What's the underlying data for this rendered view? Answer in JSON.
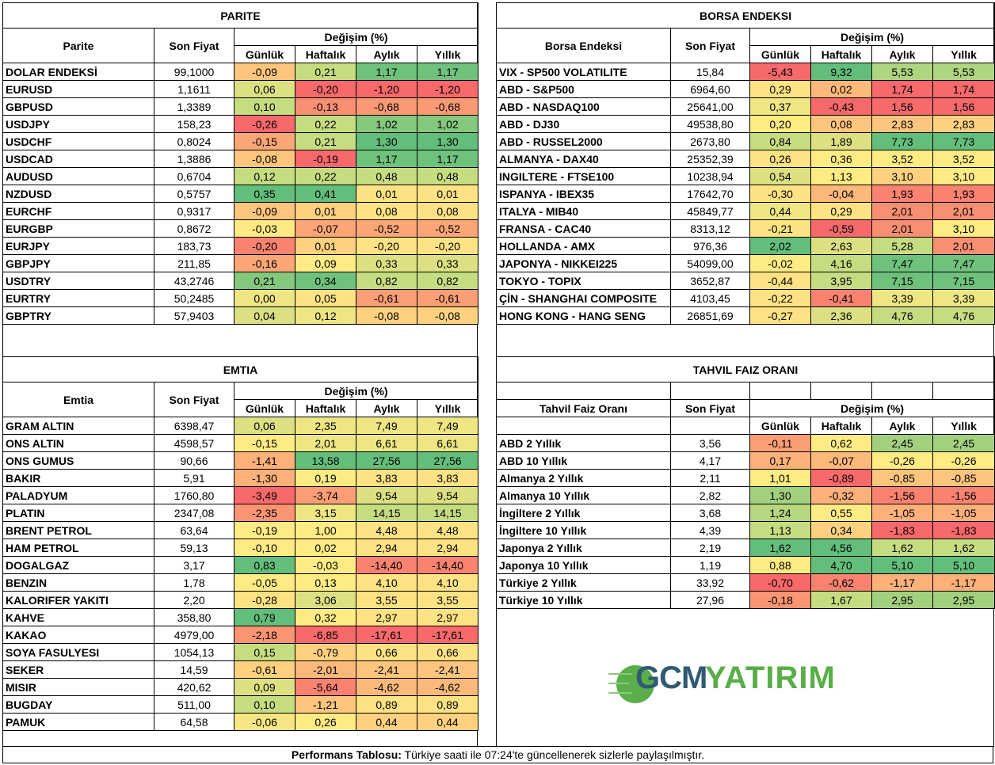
{
  "colors": {
    "deep_red": "#f8696b",
    "red": "#f98370",
    "orange_red": "#fa9e75",
    "orange": "#fcb97a",
    "light_orange": "#fdd17f",
    "yellow": "#ffeb84",
    "yellow_green": "#e5e483",
    "light_green": "#c6dc81",
    "green": "#a2d07f",
    "mid_green": "#84c77d",
    "dark_green": "#63be7b"
  },
  "parite": {
    "title": "PARITE",
    "col_name": "Parite",
    "col_price": "Son Fiyat",
    "col_change": "Değişim (%)",
    "cols": [
      "Günlük",
      "Haftalık",
      "Aylık",
      "Yıllık"
    ],
    "rows": [
      {
        "name": "DOLAR ENDEKSİ",
        "price": "99,1000",
        "v": [
          "-0,09",
          "0,21",
          "1,17",
          "1,17"
        ],
        "c": [
          "#fdc57d",
          "#c6dc81",
          "#6fc27c",
          "#6fc27c"
        ]
      },
      {
        "name": "EURUSD",
        "price": "1,1611",
        "v": [
          "0,06",
          "-0,20",
          "-1,20",
          "-1,20"
        ],
        "c": [
          "#dde082",
          "#f8696b",
          "#f8696b",
          "#f8696b"
        ]
      },
      {
        "name": "GBPUSD",
        "price": "1,3389",
        "v": [
          "0,10",
          "-0,13",
          "-0,68",
          "-0,68"
        ],
        "c": [
          "#c6dc81",
          "#fa9073",
          "#fa9a75",
          "#fa9a75"
        ]
      },
      {
        "name": "USDJPY",
        "price": "158,23",
        "v": [
          "-0,26",
          "0,22",
          "1,02",
          "1,02"
        ],
        "c": [
          "#f8696b",
          "#c6dc81",
          "#84c77d",
          "#84c77d"
        ]
      },
      {
        "name": "USDCHF",
        "price": "0,8024",
        "v": [
          "-0,15",
          "0,21",
          "1,30",
          "1,30"
        ],
        "c": [
          "#fba677",
          "#c6dc81",
          "#63be7b",
          "#63be7b"
        ]
      },
      {
        "name": "USDCAD",
        "price": "1,3886",
        "v": [
          "-0,08",
          "-0,19",
          "1,17",
          "1,17"
        ],
        "c": [
          "#fdc57d",
          "#f8696b",
          "#6fc27c",
          "#6fc27c"
        ]
      },
      {
        "name": "AUDUSD",
        "price": "0,6704",
        "v": [
          "0,12",
          "0,22",
          "0,48",
          "0,48"
        ],
        "c": [
          "#c6dc81",
          "#c6dc81",
          "#c6dc81",
          "#c6dc81"
        ]
      },
      {
        "name": "NZDUSD",
        "price": "0,5757",
        "v": [
          "0,35",
          "0,41",
          "0,01",
          "0,01"
        ],
        "c": [
          "#63be7b",
          "#63be7b",
          "#fee283",
          "#fee283"
        ]
      },
      {
        "name": "EURCHF",
        "price": "0,9317",
        "v": [
          "-0,09",
          "0,01",
          "0,08",
          "0,08"
        ],
        "c": [
          "#fdc57d",
          "#fdd17f",
          "#fee283",
          "#fee283"
        ]
      },
      {
        "name": "EURGBP",
        "price": "0,8672",
        "v": [
          "-0,03",
          "-0,07",
          "-0,52",
          "-0,52"
        ],
        "c": [
          "#ffe984",
          "#fba677",
          "#fba677",
          "#fba677"
        ]
      },
      {
        "name": "EURJPY",
        "price": "183,73",
        "v": [
          "-0,20",
          "0,01",
          "-0,20",
          "-0,20"
        ],
        "c": [
          "#f98370",
          "#fdd17f",
          "#fee283",
          "#fee283"
        ]
      },
      {
        "name": "GBPJPY",
        "price": "211,85",
        "v": [
          "-0,16",
          "0,09",
          "0,33",
          "0,33"
        ],
        "c": [
          "#fba677",
          "#ffeb84",
          "#dde082",
          "#dde082"
        ]
      },
      {
        "name": "USDTRY",
        "price": "43,2746",
        "v": [
          "0,21",
          "0,34",
          "0,82",
          "0,82"
        ],
        "c": [
          "#84c77d",
          "#6fc27c",
          "#c6dc81",
          "#c6dc81"
        ]
      },
      {
        "name": "EURTRY",
        "price": "50,2485",
        "v": [
          "0,00",
          "0,05",
          "-0,61",
          "-0,61"
        ],
        "c": [
          "#ede683",
          "#fee283",
          "#fa9e75",
          "#fa9e75"
        ]
      },
      {
        "name": "GBPTRY",
        "price": "57,9403",
        "v": [
          "0,04",
          "0,12",
          "-0,08",
          "-0,08"
        ],
        "c": [
          "#dde082",
          "#ede683",
          "#fdd17f",
          "#fdd17f"
        ]
      }
    ]
  },
  "borsa": {
    "title": "BORSA ENDEKSI",
    "col_name": "Borsa Endeksi",
    "col_price": "Son Fiyat",
    "col_change": "Değişim (%)",
    "cols": [
      "Günlük",
      "Haftalık",
      "Aylık",
      "Yıllık"
    ],
    "rows": [
      {
        "name": "VIX  - SP500 VOLATILITE",
        "price": "15,84",
        "v": [
          "-5,43",
          "9,32",
          "5,53",
          "5,53"
        ],
        "c": [
          "#f8696b",
          "#63be7b",
          "#aed580",
          "#aed580"
        ]
      },
      {
        "name": "ABD - S&P500",
        "price": "6964,60",
        "v": [
          "0,29",
          "0,02",
          "1,74",
          "1,74"
        ],
        "c": [
          "#fee283",
          "#fcb97a",
          "#f8696b",
          "#f8696b"
        ]
      },
      {
        "name": "ABD - NASDAQ100",
        "price": "25641,00",
        "v": [
          "0,37",
          "-0,43",
          "1,56",
          "1,56"
        ],
        "c": [
          "#ede683",
          "#f8696b",
          "#f8696b",
          "#f8696b"
        ]
      },
      {
        "name": "ABD - DJ30",
        "price": "49538,80",
        "v": [
          "0,20",
          "0,08",
          "2,83",
          "2,83"
        ],
        "c": [
          "#ffeb84",
          "#fdc57d",
          "#fdc57d",
          "#fdd17f"
        ]
      },
      {
        "name": "ABD - RUSSEL2000",
        "price": "2673,80",
        "v": [
          "0,84",
          "1,89",
          "7,73",
          "7,73"
        ],
        "c": [
          "#c6dc81",
          "#dde082",
          "#63be7b",
          "#63be7b"
        ]
      },
      {
        "name": "ALMANYA - DAX40",
        "price": "25352,39",
        "v": [
          "0,26",
          "0,36",
          "3,52",
          "3,52"
        ],
        "c": [
          "#fee283",
          "#ffeb84",
          "#ffeb84",
          "#ffeb84"
        ]
      },
      {
        "name": "INGILTERE - FTSE100",
        "price": "10238,94",
        "v": [
          "0,54",
          "1,13",
          "3,10",
          "3,10"
        ],
        "c": [
          "#dde082",
          "#ffeb84",
          "#fdd17f",
          "#ffeb84"
        ]
      },
      {
        "name": "ISPANYA - IBEX35",
        "price": "17642,70",
        "v": [
          "-0,30",
          "-0,04",
          "1,93",
          "1,93"
        ],
        "c": [
          "#fee283",
          "#fcb97a",
          "#f98370",
          "#f98370"
        ]
      },
      {
        "name": "ITALYA - MIB40",
        "price": "45849,77",
        "v": [
          "0,44",
          "0,29",
          "2,01",
          "2,01"
        ],
        "c": [
          "#ede683",
          "#fee283",
          "#f98f72",
          "#f98f72"
        ]
      },
      {
        "name": "FRANSA - CAC40",
        "price": "8313,12",
        "v": [
          "-0,21",
          "-0,59",
          "2,01",
          "3,10"
        ],
        "c": [
          "#fee283",
          "#f8696b",
          "#f98f72",
          "#ffeb84"
        ]
      },
      {
        "name": "HOLLANDA - AMX",
        "price": "976,36",
        "v": [
          "2,02",
          "2,63",
          "5,28",
          "2,01"
        ],
        "c": [
          "#63be7b",
          "#dde082",
          "#c6dc81",
          "#f98f72"
        ]
      },
      {
        "name": "JAPONYA - NIKKEI225",
        "price": "54099,00",
        "v": [
          "-0,02",
          "4,16",
          "7,47",
          "7,47"
        ],
        "c": [
          "#ffeb84",
          "#c6dc81",
          "#6fc27c",
          "#6fc27c"
        ]
      },
      {
        "name": "TOKYO - TOPIX",
        "price": "3652,87",
        "v": [
          "-0,44",
          "3,95",
          "7,15",
          "7,15"
        ],
        "c": [
          "#fee283",
          "#c6dc81",
          "#6fc27c",
          "#6fc27c"
        ]
      },
      {
        "name": "ÇİN - SHANGHAI COMPOSITE",
        "price": "4103,45",
        "v": [
          "-0,22",
          "-0,41",
          "3,39",
          "3,39"
        ],
        "c": [
          "#fee283",
          "#f98370",
          "#ede683",
          "#ede683"
        ]
      },
      {
        "name": "HONG KONG - HANG SENG",
        "price": "26851,69",
        "v": [
          "-0,27",
          "2,36",
          "4,76",
          "4,76"
        ],
        "c": [
          "#fee283",
          "#dde082",
          "#c6dc81",
          "#c6dc81"
        ]
      }
    ]
  },
  "emtia": {
    "title": "EMTIA",
    "col_name": "Emtia",
    "col_price": "Son Fiyat",
    "col_change": "Değişim (%)",
    "cols": [
      "Günlük",
      "Haftalık",
      "Aylık",
      "Yıllık"
    ],
    "rows": [
      {
        "name": "GRAM ALTIN",
        "price": "6398,47",
        "v": [
          "0,06",
          "2,35",
          "7,49",
          "7,49"
        ],
        "c": [
          "#dde082",
          "#ede683",
          "#ede683",
          "#ede683"
        ]
      },
      {
        "name": "ONS ALTIN",
        "price": "4598,57",
        "v": [
          "-0,15",
          "2,01",
          "6,61",
          "6,61"
        ],
        "c": [
          "#ffeb84",
          "#ede683",
          "#ede683",
          "#ede683"
        ]
      },
      {
        "name": "ONS GUMUS",
        "price": "90,66",
        "v": [
          "-1,41",
          "13,58",
          "27,56",
          "27,56"
        ],
        "c": [
          "#fcb07a",
          "#63be7b",
          "#63be7b",
          "#63be7b"
        ]
      },
      {
        "name": "BAKIR",
        "price": "5,91",
        "v": [
          "-1,30",
          "0,19",
          "3,83",
          "3,83"
        ],
        "c": [
          "#fcb07a",
          "#ffeb84",
          "#fee283",
          "#fee283"
        ]
      },
      {
        "name": "PALADYUM",
        "price": "1760,80",
        "v": [
          "-3,49",
          "-3,74",
          "9,54",
          "9,54"
        ],
        "c": [
          "#f8696b",
          "#fa9e75",
          "#dde082",
          "#dde082"
        ]
      },
      {
        "name": "PLATIN",
        "price": "2347,08",
        "v": [
          "-2,35",
          "3,15",
          "14,15",
          "14,15"
        ],
        "c": [
          "#fa9473",
          "#ede683",
          "#c6dc81",
          "#c6dc81"
        ]
      },
      {
        "name": "BRENT PETROL",
        "price": "63,64",
        "v": [
          "-0,19",
          "1,00",
          "4,48",
          "4,48"
        ],
        "c": [
          "#ffeb84",
          "#ffeb84",
          "#fee283",
          "#fee283"
        ]
      },
      {
        "name": "HAM PETROL",
        "price": "59,13",
        "v": [
          "-0,10",
          "0,02",
          "2,94",
          "2,94"
        ],
        "c": [
          "#ffeb84",
          "#ffeb84",
          "#fee283",
          "#fee283"
        ]
      },
      {
        "name": "DOGALGAZ",
        "price": "3,17",
        "v": [
          "0,83",
          "-0,03",
          "-14,40",
          "-14,40"
        ],
        "c": [
          "#63be7b",
          "#ffeb84",
          "#f98370",
          "#f98370"
        ]
      },
      {
        "name": "BENZIN",
        "price": "1,78",
        "v": [
          "-0,05",
          "0,13",
          "4,10",
          "4,10"
        ],
        "c": [
          "#ffeb84",
          "#ffeb84",
          "#fee283",
          "#fee283"
        ]
      },
      {
        "name": "KALORIFER YAKITI",
        "price": "2,20",
        "v": [
          "-0,28",
          "3,06",
          "3,55",
          "3,55"
        ],
        "c": [
          "#fee283",
          "#dde082",
          "#fee283",
          "#fee283"
        ]
      },
      {
        "name": "KAHVE",
        "price": "358,80",
        "v": [
          "0,79",
          "0,32",
          "2,97",
          "2,97"
        ],
        "c": [
          "#63be7b",
          "#ffeb84",
          "#fee283",
          "#fee283"
        ]
      },
      {
        "name": "KAKAO",
        "price": "4979,00",
        "v": [
          "-2,18",
          "-6,85",
          "-17,61",
          "-17,61"
        ],
        "c": [
          "#fa9473",
          "#f8696b",
          "#f8696b",
          "#f8696b"
        ]
      },
      {
        "name": "SOYA FASULYESI",
        "price": "1054,13",
        "v": [
          "0,15",
          "-0,79",
          "0,66",
          "0,66"
        ],
        "c": [
          "#c6dc81",
          "#fdd17f",
          "#fee283",
          "#fee283"
        ]
      },
      {
        "name": "SEKER",
        "price": "14,59",
        "v": [
          "-0,61",
          "-2,01",
          "-2,41",
          "-2,41"
        ],
        "c": [
          "#fdd17f",
          "#fcb97a",
          "#fdc57d",
          "#fdc57d"
        ]
      },
      {
        "name": "MISIR",
        "price": "420,62",
        "v": [
          "0,09",
          "-5,64",
          "-4,62",
          "-4,62"
        ],
        "c": [
          "#dde082",
          "#f98370",
          "#fcb97a",
          "#fcb97a"
        ]
      },
      {
        "name": "BUGDAY",
        "price": "511,00",
        "v": [
          "0,10",
          "-1,21",
          "0,89",
          "0,89"
        ],
        "c": [
          "#c6dc81",
          "#fdc57d",
          "#fee283",
          "#fee283"
        ]
      },
      {
        "name": "PAMUK",
        "price": "64,58",
        "v": [
          "-0,06",
          "0,26",
          "0,44",
          "0,44"
        ],
        "c": [
          "#f7e684",
          "#ffeb84",
          "#fdd17f",
          "#fdd17f"
        ]
      }
    ]
  },
  "tahvil": {
    "title": "TAHVIL FAIZ ORANI",
    "col_name": "Tahvil Faiz Oranı",
    "col_price": "Son Fiyat",
    "col_change": "Değişim (%)",
    "cols": [
      "Günlük",
      "Haftalık",
      "Aylık",
      "Yıllık"
    ],
    "rows": [
      {
        "name": "ABD 2 Yıllık",
        "price": "3,56",
        "v": [
          "-0,11",
          "0,62",
          "2,45",
          "2,45"
        ],
        "c": [
          "#fa9e75",
          "#ffeb84",
          "#a2d07f",
          "#a2d07f"
        ]
      },
      {
        "name": "ABD 10 Yıllık",
        "price": "4,17",
        "v": [
          "0,17",
          "-0,07",
          "-0,26",
          "-0,26"
        ],
        "c": [
          "#fcb07a",
          "#fcb97a",
          "#ffeb84",
          "#ffeb84"
        ]
      },
      {
        "name": "Almanya 2 Yıllık",
        "price": "2,11",
        "v": [
          "1,01",
          "-0,89",
          "-0,85",
          "-0,85"
        ],
        "c": [
          "#ffeb84",
          "#f8696b",
          "#fdc57d",
          "#fdc57d"
        ]
      },
      {
        "name": "Almanya 10 Yıllık",
        "price": "2,82",
        "v": [
          "1,30",
          "-0,32",
          "-1,56",
          "-1,56"
        ],
        "c": [
          "#a2d07f",
          "#fcb07a",
          "#f98370",
          "#f98370"
        ]
      },
      {
        "name": "İngiltere 2 Yıllık",
        "price": "3,68",
        "v": [
          "1,24",
          "0,55",
          "-1,05",
          "-1,05"
        ],
        "c": [
          "#b5d780",
          "#ffeb84",
          "#fcb07a",
          "#fcb07a"
        ]
      },
      {
        "name": "İngiltere 10 Yıllık",
        "price": "4,39",
        "v": [
          "1,13",
          "0,34",
          "-1,83",
          "-1,83"
        ],
        "c": [
          "#c6dc81",
          "#fdd17f",
          "#f8696b",
          "#f8696b"
        ]
      },
      {
        "name": "Japonya 2 Yıllık",
        "price": "2,19",
        "v": [
          "1,62",
          "4,56",
          "1,62",
          "1,62"
        ],
        "c": [
          "#63be7b",
          "#63be7b",
          "#c6dc81",
          "#c6dc81"
        ]
      },
      {
        "name": "Japonya 10 Yıllık",
        "price": "1,19",
        "v": [
          "0,88",
          "4,70",
          "5,10",
          "5,10"
        ],
        "c": [
          "#ffeb84",
          "#63be7b",
          "#63be7b",
          "#63be7b"
        ]
      },
      {
        "name": "Türkiye 2 Yıllık",
        "price": "33,92",
        "v": [
          "-0,70",
          "-0,62",
          "-1,17",
          "-1,17"
        ],
        "c": [
          "#f8696b",
          "#f98370",
          "#fcb07a",
          "#fcb07a"
        ]
      },
      {
        "name": "Türkiye 10 Yıllık",
        "price": "27,96",
        "v": [
          "-0,18",
          "1,67",
          "2,95",
          "2,95"
        ],
        "c": [
          "#fa9473",
          "#c6dc81",
          "#a2d07f",
          "#a2d07f"
        ]
      }
    ]
  },
  "logo": {
    "part1": "GCM",
    "part2": "YATIRIM"
  },
  "footer": {
    "label": "Performans Tablosu:",
    "text": " Türkiye saati ile 07:24'te güncellenerek sizlerle paylaşılmıştır."
  }
}
